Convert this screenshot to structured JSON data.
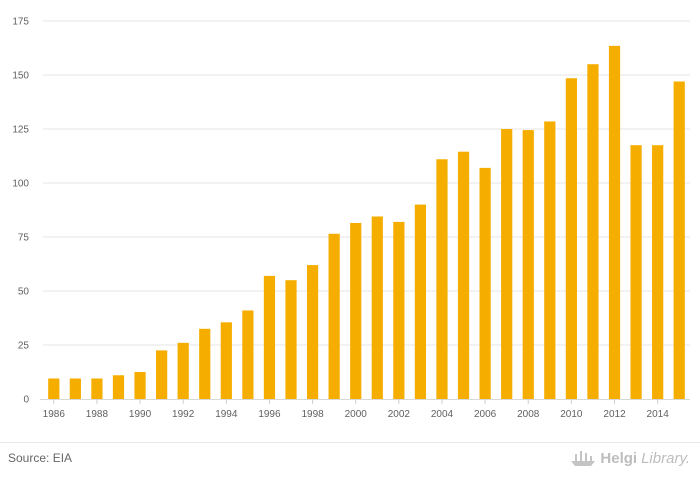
{
  "chart_data": {
    "type": "bar",
    "categories": [
      "1986",
      "1987",
      "1988",
      "1989",
      "1990",
      "1991",
      "1992",
      "1993",
      "1994",
      "1995",
      "1996",
      "1997",
      "1998",
      "1999",
      "2000",
      "2001",
      "2002",
      "2003",
      "2004",
      "2005",
      "2006",
      "2007",
      "2008",
      "2009",
      "2010",
      "2011",
      "2012",
      "2013",
      "2014",
      "2015"
    ],
    "x_tick_labels": [
      "1986",
      "1988",
      "1990",
      "1992",
      "1994",
      "1996",
      "1998",
      "2000",
      "2002",
      "2004",
      "2006",
      "2008",
      "2010",
      "2012",
      "2014"
    ],
    "values": [
      9.5,
      9.5,
      9.5,
      11,
      12.5,
      22.5,
      26,
      32.5,
      35.5,
      41,
      57,
      55,
      62,
      76.5,
      81.5,
      84.5,
      82,
      90,
      111,
      114.5,
      107,
      125,
      124.5,
      128.5,
      148.5,
      155,
      163.5,
      117.5,
      117.5,
      147
    ],
    "y_ticks": [
      0,
      25,
      50,
      75,
      100,
      125,
      150,
      175
    ],
    "ylim": [
      0,
      175
    ],
    "grid": true,
    "bar_color": "#f5ae00",
    "title": "",
    "xlabel": "",
    "ylabel": ""
  },
  "footer": {
    "source": "Source: EIA",
    "brand_name": "Helgi",
    "brand_rest": "Library."
  }
}
